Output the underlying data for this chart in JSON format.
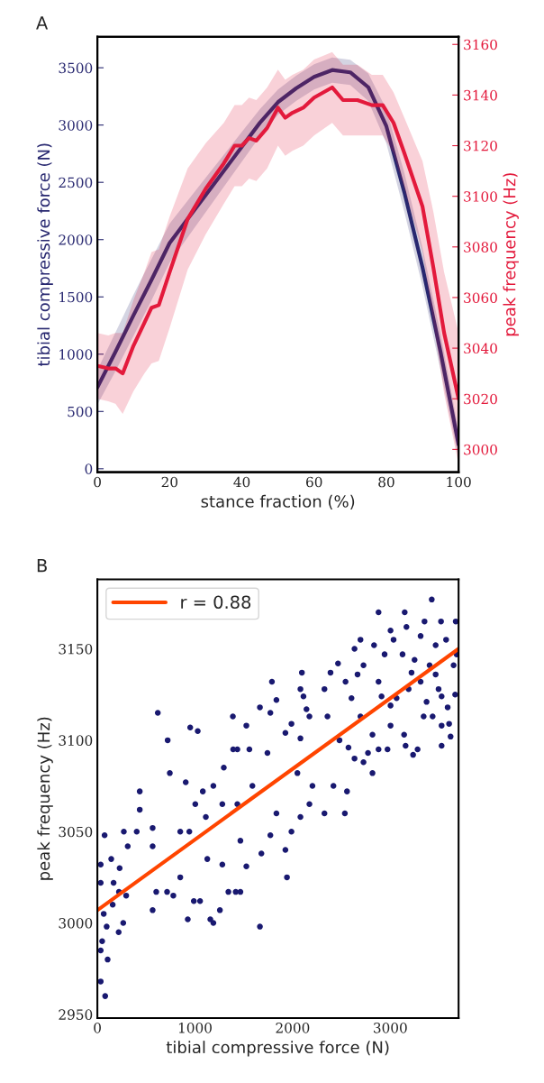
{
  "chart_data": [
    {
      "type": "line",
      "title": "A",
      "xlabel": "stance fraction (%)",
      "ylabel": "tibial compressive force (N)",
      "y2label": "peak frequency (Hz)",
      "xlim": [
        0,
        100
      ],
      "xticks": [
        0,
        20,
        40,
        60,
        80,
        100
      ],
      "ylim": [
        -30,
        3770
      ],
      "yticks": [
        0,
        500,
        1000,
        1500,
        2000,
        2500,
        3000,
        3500
      ],
      "y2lim": [
        2991,
        3163
      ],
      "y2ticks": [
        3000,
        3020,
        3040,
        3060,
        3080,
        3100,
        3120,
        3140,
        3160
      ],
      "grid": false,
      "legend": false,
      "series": [
        {
          "color": "#282870",
          "x": [
            0,
            5,
            10,
            15,
            20,
            25,
            30,
            35,
            40,
            45,
            50,
            55,
            60,
            65,
            70,
            75,
            80,
            85,
            90,
            95,
            100
          ],
          "values": [
            710,
            1020,
            1340,
            1650,
            1970,
            2180,
            2390,
            2600,
            2810,
            3020,
            3200,
            3320,
            3420,
            3480,
            3460,
            3330,
            2990,
            2410,
            1760,
            1020,
            210
          ],
          "lower": [
            560,
            850,
            1160,
            1470,
            1800,
            2020,
            2240,
            2460,
            2680,
            2900,
            3090,
            3210,
            3310,
            3370,
            3350,
            3210,
            2840,
            2240,
            1590,
            860,
            90
          ],
          "upper": [
            860,
            1190,
            1520,
            1830,
            2140,
            2340,
            2540,
            2740,
            2940,
            3140,
            3310,
            3430,
            3530,
            3590,
            3570,
            3450,
            3140,
            2580,
            1930,
            1180,
            330
          ]
        },
        {
          "color": "#e31a3c",
          "axis": "y2",
          "x": [
            0,
            3,
            5,
            7,
            10,
            13,
            15,
            17,
            20,
            25,
            30,
            35,
            38,
            40,
            42,
            44,
            47,
            50,
            52,
            54,
            57,
            60,
            65,
            68,
            72,
            76,
            79,
            82,
            85,
            90,
            93,
            96,
            100
          ],
          "values": [
            3033,
            3032,
            3032,
            3030,
            3041,
            3050,
            3056,
            3057,
            3070,
            3091,
            3103,
            3113,
            3120,
            3120,
            3123,
            3122,
            3127,
            3135,
            3131,
            3133,
            3135,
            3139,
            3143,
            3138,
            3138,
            3136,
            3136,
            3129,
            3117,
            3096,
            3072,
            3046,
            3020
          ],
          "lower": [
            3020,
            3019,
            3018,
            3014,
            3023,
            3030,
            3034,
            3035,
            3048,
            3071,
            3085,
            3097,
            3104,
            3104,
            3107,
            3106,
            3111,
            3120,
            3116,
            3118,
            3120,
            3124,
            3129,
            3124,
            3124,
            3124,
            3124,
            3117,
            3103,
            3078,
            3050,
            3022,
            2994
          ],
          "upper": [
            3046,
            3045,
            3046,
            3046,
            3059,
            3070,
            3078,
            3079,
            3092,
            3111,
            3121,
            3129,
            3136,
            3136,
            3139,
            3138,
            3143,
            3150,
            3146,
            3148,
            3150,
            3154,
            3157,
            3152,
            3152,
            3148,
            3148,
            3141,
            3131,
            3114,
            3094,
            3070,
            3046
          ]
        }
      ]
    },
    {
      "type": "scatter",
      "title": "B",
      "xlabel": "tibial compressive force (N)",
      "ylabel": "peak frequency (Hz)",
      "xlim": [
        0,
        3700
      ],
      "xticks": [
        0,
        1000,
        2000,
        3000
      ],
      "ylim": [
        2948,
        3188
      ],
      "yticks": [
        2950,
        3000,
        3050,
        3100,
        3150
      ],
      "grid": false,
      "legend": "top left",
      "series": [
        {
          "type": "scatter",
          "marker": "circle",
          "color": "#191970",
          "x": [
            34,
            80,
            105,
            34,
            49,
            95,
            65,
            34,
            34,
            74,
            142,
            228,
            166,
            221,
            295,
            265,
            218,
            157,
            271,
            311,
            403,
            434,
            434,
            619,
            720,
            742,
            905,
            951,
            1028,
            566,
            566,
            603,
            566,
            714,
            778,
            849,
            926,
            988,
            1052,
            1157,
            1188,
            1255,
            849,
            942,
            1003,
            1080,
            1188,
            1280,
            1111,
            1126,
            1280,
            1342,
            1417,
            1465,
            1388,
            1665,
            1526,
            1772,
            1788,
            1834,
            1665,
            1942,
            1926,
            1988,
            1772,
            1680,
            1526,
            1465,
            1434,
            1588,
            1557,
            1742,
            1434,
            1391,
            1295,
            1834,
            2080,
            2172,
            2326,
            2535,
            2557,
            2418,
            2203,
            2049,
            2080,
            1926,
            1988,
            2111,
            2142,
            2080,
            2095,
            2172,
            2326,
            2388,
            2465,
            2357,
            2480,
            2572,
            2634,
            2726,
            2818,
            2772,
            2880,
            2972,
            3157,
            3234,
            3280,
            3526,
            3618,
            3142,
            3003,
            2818,
            2695,
            2603,
            2542,
            2665,
            2726,
            2634,
            2695,
            2834,
            2880,
            3148,
            3166,
            3351,
            3425,
            3520,
            3671,
            3003,
            3034,
            2942,
            3126,
            3311,
            3465,
            3572,
            3680,
            3649,
            3665,
            3588,
            3495,
            3372,
            3311,
            3188,
            3065,
            2911,
            2880,
            3403,
            3249,
            3434,
            3526,
            3342,
            3603,
            3003,
            3465,
            3526,
            3218
          ],
          "values": [
            2968,
            2960,
            2980,
            2985,
            2990,
            2998,
            3005,
            3022,
            3032,
            3048,
            3035,
            3030,
            3022,
            3017,
            3015,
            3000,
            2995,
            3010,
            3050,
            3042,
            3050,
            3062,
            3072,
            3115,
            3100,
            3082,
            3077,
            3107,
            3105,
            3052,
            3042,
            3017,
            3007,
            3017,
            3015,
            3025,
            3002,
            3012,
            3012,
            3002,
            3000,
            3007,
            3050,
            3050,
            3065,
            3072,
            3075,
            3065,
            3058,
            3035,
            3032,
            3017,
            3017,
            3017,
            3113,
            3118,
            3108,
            3115,
            3132,
            3122,
            2998,
            3025,
            3040,
            3050,
            3048,
            3038,
            3031,
            3045,
            3065,
            3075,
            3095,
            3093,
            3095,
            3095,
            3085,
            3060,
            3058,
            3065,
            3060,
            3060,
            3072,
            3075,
            3075,
            3082,
            3101,
            3104,
            3109,
            3124,
            3117,
            3128,
            3137,
            3113,
            3128,
            3137,
            3142,
            3113,
            3100,
            3096,
            3090,
            3088,
            3082,
            3093,
            3095,
            3095,
            3097,
            3092,
            3095,
            3097,
            3102,
            3103,
            3108,
            3103,
            3113,
            3123,
            3132,
            3136,
            3141,
            3150,
            3155,
            3152,
            3170,
            3170,
            3162,
            3165,
            3177,
            3165,
            3165,
            3160,
            3155,
            3147,
            3147,
            3157,
            3152,
            3155,
            3147,
            3141,
            3125,
            3118,
            3128,
            3121,
            3132,
            3128,
            3123,
            3124,
            3132,
            3141,
            3144,
            3113,
            3108,
            3113,
            3109,
            3119,
            3136,
            3124,
            3137
          ]
        },
        {
          "type": "line",
          "name": "r = 0.88",
          "color": "#ff4500",
          "x": [
            0,
            3700
          ],
          "values": [
            3007,
            3150
          ]
        }
      ]
    }
  ]
}
